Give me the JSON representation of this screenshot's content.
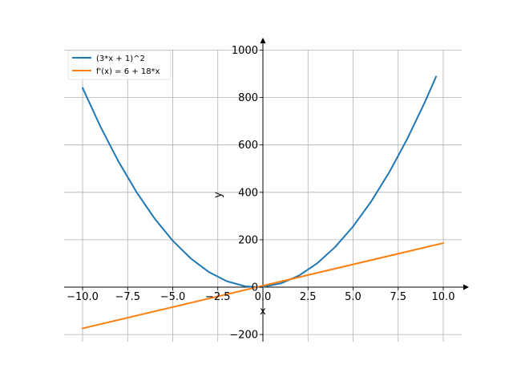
{
  "chart_data": {
    "type": "line",
    "title": "",
    "xlabel": "x",
    "ylabel": "y",
    "xlim": [
      -11.0,
      11.0
    ],
    "ylim": [
      -230,
      1050
    ],
    "x_ticks": [
      -10.0,
      -7.5,
      -5.0,
      -2.5,
      0.0,
      2.5,
      5.0,
      7.5,
      10.0
    ],
    "x_tick_labels": [
      "−10.0",
      "−7.5",
      "−5.0",
      "−2.5",
      "0.0",
      "2.5",
      "5.0",
      "7.5",
      "10.0"
    ],
    "y_ticks": [
      -200,
      0,
      200,
      400,
      600,
      800,
      1000
    ],
    "y_tick_labels": [
      "−200",
      "0",
      "200",
      "400",
      "600",
      "800",
      "1000"
    ],
    "grid": true,
    "legend_position": "top-left",
    "series": [
      {
        "name": "(3*x + 1)^2",
        "color": "#1f77b4",
        "x": [
          -10.0,
          -9.0,
          -8.0,
          -7.0,
          -6.0,
          -5.0,
          -4.0,
          -3.0,
          -2.0,
          -1.0,
          -0.333,
          0.0,
          1.0,
          2.0,
          3.0,
          4.0,
          5.0,
          6.0,
          7.0,
          8.0,
          9.0,
          9.6
        ],
        "values": [
          841,
          676,
          529,
          400,
          289,
          196,
          121,
          64,
          25,
          4,
          0,
          1,
          16,
          49,
          100,
          169,
          256,
          361,
          484,
          625,
          784,
          888
        ]
      },
      {
        "name": "f'(x) = 6 + 18*x",
        "color": "#ff7f0e",
        "x": [
          -10.0,
          10.0
        ],
        "values": [
          -174,
          186
        ]
      }
    ]
  }
}
